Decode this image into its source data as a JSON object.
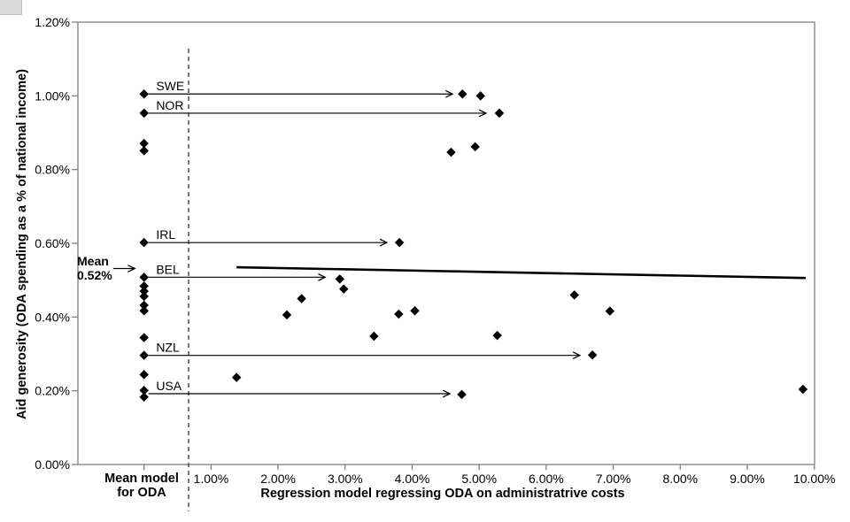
{
  "chart_data": {
    "type": "scatter",
    "title": "",
    "xlabel": "Regression model regressing ODA on administratrive costs",
    "ylabel": "Aid generosity (ODA spending as a % of national income)",
    "left_column_label": "Mean model\nfor ODA",
    "xlim": [
      -0.99,
      10.0
    ],
    "ylim": [
      0,
      1.2
    ],
    "grid": "off",
    "legend": "none",
    "x_ticks": [
      {
        "label": "1.00%",
        "value": 1
      },
      {
        "label": "2.00%",
        "value": 2
      },
      {
        "label": "3.00%",
        "value": 3
      },
      {
        "label": "4.00%",
        "value": 4
      },
      {
        "label": "5.00%",
        "value": 5
      },
      {
        "label": "6.00%",
        "value": 6
      },
      {
        "label": "7.00%",
        "value": 7
      },
      {
        "label": "8.00%",
        "value": 8
      },
      {
        "label": "9.00%",
        "value": 9
      },
      {
        "label": "10.00%",
        "value": 10
      }
    ],
    "y_ticks": [
      {
        "label": "0.00%",
        "value": 0
      },
      {
        "label": "0.20%",
        "value": 0.2
      },
      {
        "label": "0.40%",
        "value": 0.4
      },
      {
        "label": "0.60%",
        "value": 0.6
      },
      {
        "label": "0.80%",
        "value": 0.8
      },
      {
        "label": "1.00%",
        "value": 1.0
      },
      {
        "label": "1.20%",
        "value": 1.2
      }
    ],
    "mean_model": {
      "x": 0,
      "values": [
        1.005,
        0.953,
        0.871,
        0.851,
        0.602,
        0.508,
        0.484,
        0.47,
        0.456,
        0.432,
        0.417,
        0.344,
        0.296,
        0.244,
        0.201,
        0.183
      ]
    },
    "regression_model": {
      "points": [
        {
          "x": 4.75,
          "y": 1.005,
          "country": "SWE"
        },
        {
          "x": 5.02,
          "y": 1.0
        },
        {
          "x": 5.3,
          "y": 0.953,
          "country": "NOR"
        },
        {
          "x": 4.58,
          "y": 0.847
        },
        {
          "x": 4.94,
          "y": 0.862
        },
        {
          "x": 3.81,
          "y": 0.602,
          "country": "IRL"
        },
        {
          "x": 2.92,
          "y": 0.503,
          "country": "BEL"
        },
        {
          "x": 2.98,
          "y": 0.476
        },
        {
          "x": 2.35,
          "y": 0.45
        },
        {
          "x": 2.13,
          "y": 0.406
        },
        {
          "x": 3.8,
          "y": 0.408
        },
        {
          "x": 4.04,
          "y": 0.417
        },
        {
          "x": 3.43,
          "y": 0.348
        },
        {
          "x": 6.42,
          "y": 0.46
        },
        {
          "x": 6.95,
          "y": 0.416
        },
        {
          "x": 5.27,
          "y": 0.35
        },
        {
          "x": 6.69,
          "y": 0.297,
          "country": "NZL"
        },
        {
          "x": 1.38,
          "y": 0.236
        },
        {
          "x": 4.74,
          "y": 0.19,
          "country": "USA"
        },
        {
          "x": 9.83,
          "y": 0.204
        }
      ]
    },
    "countries": [
      {
        "label": "SWE",
        "mean_y": 1.005,
        "arrow_end_x": 4.6
      },
      {
        "label": "NOR",
        "mean_y": 0.953,
        "arrow_end_x": 5.1
      },
      {
        "label": "IRL",
        "mean_y": 0.602,
        "arrow_end_x": 3.62
      },
      {
        "label": "BEL",
        "mean_y": 0.508,
        "arrow_end_x": 2.7
      },
      {
        "label": "NZL",
        "mean_y": 0.296,
        "arrow_end_x": 6.5
      },
      {
        "label": "USA",
        "mean_y": 0.192,
        "arrow_end_x": 4.56
      }
    ],
    "regression_line": {
      "x1": 1.38,
      "y1": 0.535,
      "x2": 9.87,
      "y2": 0.506
    },
    "mean_annotation": {
      "text": "Mean\n0.52%",
      "value": 0.52
    },
    "separator_x": 0.665,
    "colors": {
      "marker": "#000000",
      "axis": "#808080",
      "arrow": "#000000",
      "dashed": "#404040",
      "background": "#ffffff"
    }
  }
}
